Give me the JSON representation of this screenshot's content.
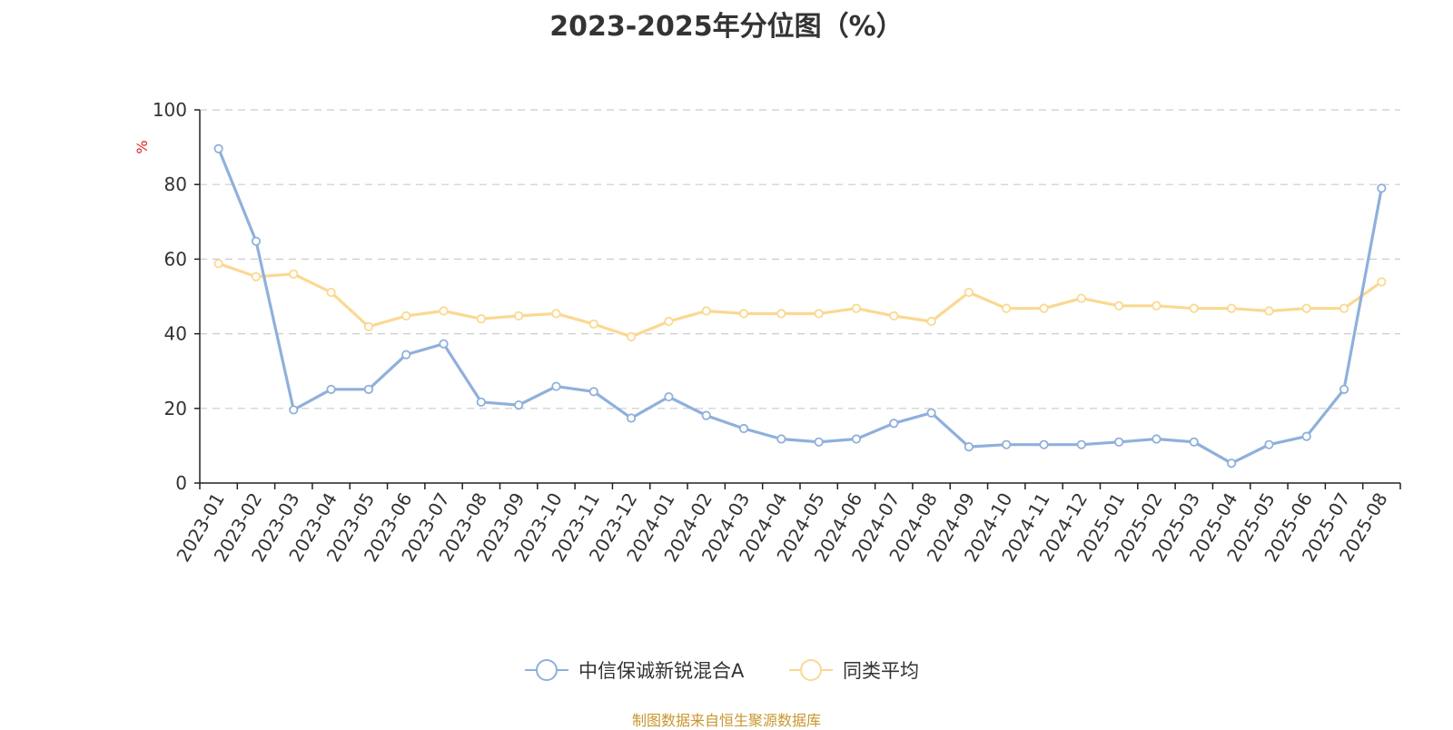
{
  "footer_text": "制图数据来自恒生聚源数据库",
  "colors": {
    "series_0": "#8fb0db",
    "series_1": "#fbd892",
    "footer": "#c8962e",
    "unit": "#e02020"
  },
  "chart_data": {
    "type": "line",
    "title": "2023-2025年分位图（%）",
    "ylabel": "%",
    "ylim": [
      0,
      100
    ],
    "yticks": [
      0,
      20,
      40,
      60,
      80,
      100
    ],
    "grid": true,
    "legend_position": "bottom-center",
    "x": [
      "2023-01",
      "2023-02",
      "2023-03",
      "2023-04",
      "2023-05",
      "2023-06",
      "2023-07",
      "2023-08",
      "2023-09",
      "2023-10",
      "2023-11",
      "2023-12",
      "2024-01",
      "2024-02",
      "2024-03",
      "2024-04",
      "2024-05",
      "2024-06",
      "2024-07",
      "2024-08",
      "2024-09",
      "2024-10",
      "2024-11",
      "2024-12",
      "2025-01",
      "2025-02",
      "2025-03",
      "2025-04",
      "2025-05",
      "2025-06",
      "2025-07",
      "2025-08"
    ],
    "series": [
      {
        "name": "中信保诚新锐混合A",
        "values": [
          89.6,
          64.8,
          19.6,
          25.1,
          25.1,
          34.4,
          37.3,
          21.7,
          20.9,
          25.9,
          24.5,
          17.4,
          23.1,
          18.1,
          14.6,
          11.8,
          11.0,
          11.8,
          16.0,
          18.8,
          9.7,
          10.3,
          10.3,
          10.3,
          11.0,
          11.8,
          11.0,
          5.3,
          10.3,
          12.5,
          25.1,
          79.0
        ]
      },
      {
        "name": "同类平均",
        "values": [
          58.8,
          55.3,
          56.0,
          51.1,
          41.9,
          44.8,
          46.1,
          44.0,
          44.8,
          45.4,
          42.6,
          39.2,
          43.3,
          46.1,
          45.4,
          45.4,
          45.4,
          46.8,
          44.8,
          43.3,
          51.1,
          46.8,
          46.8,
          49.5,
          47.5,
          47.5,
          46.8,
          46.8,
          46.1,
          46.8,
          46.8,
          53.9
        ]
      }
    ]
  }
}
